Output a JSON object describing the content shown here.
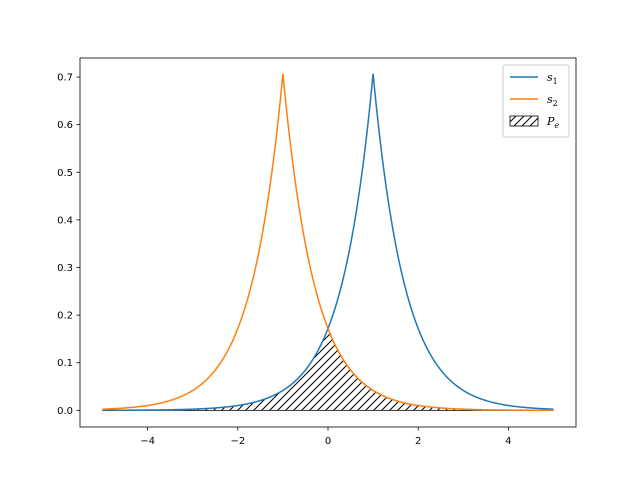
{
  "chart_data": {
    "type": "line",
    "title": "",
    "xlabel": "",
    "ylabel": "",
    "xlim": [
      -5.5,
      5.5
    ],
    "ylim": [
      -0.035,
      0.74
    ],
    "grid": false,
    "legend_placement": "top-right",
    "x_ticks": [
      -4,
      -2,
      0,
      2,
      4
    ],
    "x_tick_labels": [
      "−4",
      "−2",
      "0",
      "2",
      "4"
    ],
    "y_ticks": [
      0.0,
      0.1,
      0.2,
      0.3,
      0.4,
      0.5,
      0.6,
      0.7
    ],
    "y_tick_labels": [
      "0.0",
      "0.1",
      "0.2",
      "0.3",
      "0.4",
      "0.5",
      "0.6",
      "0.7"
    ],
    "domain": [
      -5,
      5
    ],
    "series": [
      {
        "name": "s",
        "subscript": "1",
        "color": "#1f77b4",
        "center": 1,
        "peak": 0.7071
      },
      {
        "name": "s",
        "subscript": "2",
        "color": "#ff7f0e",
        "center": -1,
        "peak": 0.7071
      }
    ],
    "shaded_region": {
      "name": "P",
      "subscript": "e",
      "hatch": "diagonal",
      "definition": "min(s1, s2)"
    }
  }
}
